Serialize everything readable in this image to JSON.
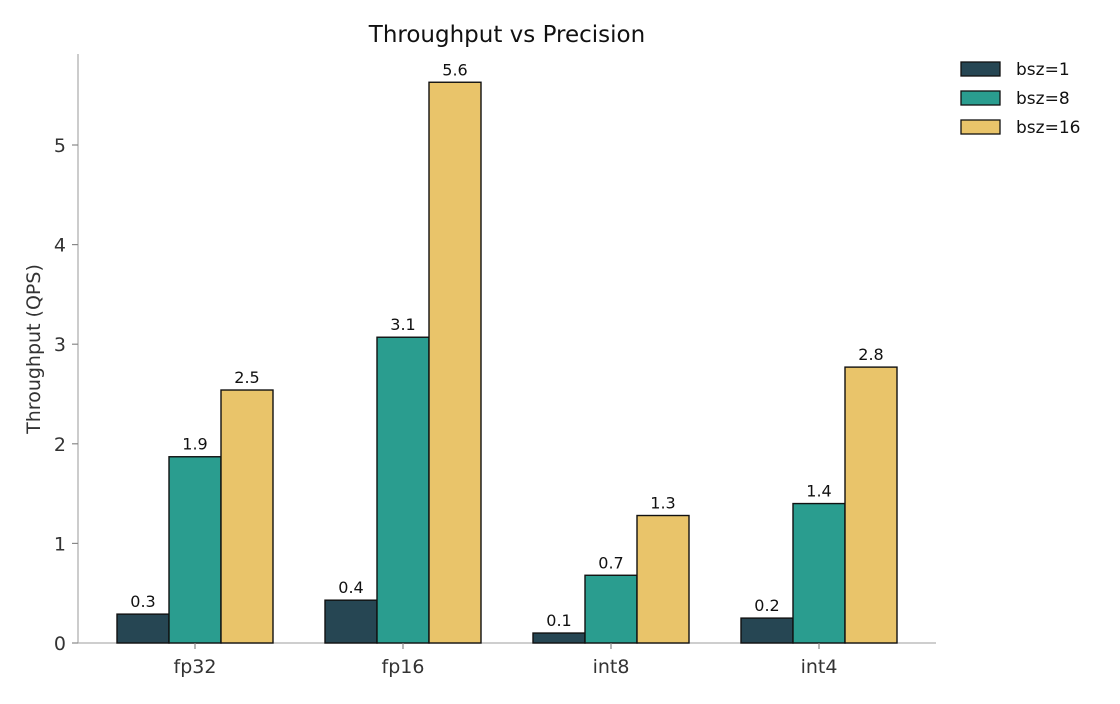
{
  "chart_data": {
    "type": "bar",
    "title": "Throughput vs Precision",
    "xlabel": "",
    "ylabel": "Throughput (QPS)",
    "categories": [
      "fp32",
      "fp16",
      "int8",
      "int4"
    ],
    "ylim": [
      0,
      5.9
    ],
    "yticks": [
      0,
      1,
      2,
      3,
      4,
      5
    ],
    "grid": false,
    "legend_position": "top-right, outside plot",
    "series": [
      {
        "name": "bsz=1",
        "color": "#264653",
        "values": [
          0.29,
          0.43,
          0.1,
          0.25
        ],
        "labels": [
          "0.3",
          "0.4",
          "0.1",
          "0.2"
        ]
      },
      {
        "name": "bsz=8",
        "color": "#2a9d8f",
        "values": [
          1.87,
          3.07,
          0.68,
          1.4
        ],
        "labels": [
          "1.9",
          "3.1",
          "0.7",
          "1.4"
        ]
      },
      {
        "name": "bsz=16",
        "color": "#e9c46a",
        "values": [
          2.54,
          5.63,
          1.28,
          2.77
        ],
        "labels": [
          "2.5",
          "5.6",
          "1.3",
          "2.8"
        ]
      }
    ]
  }
}
